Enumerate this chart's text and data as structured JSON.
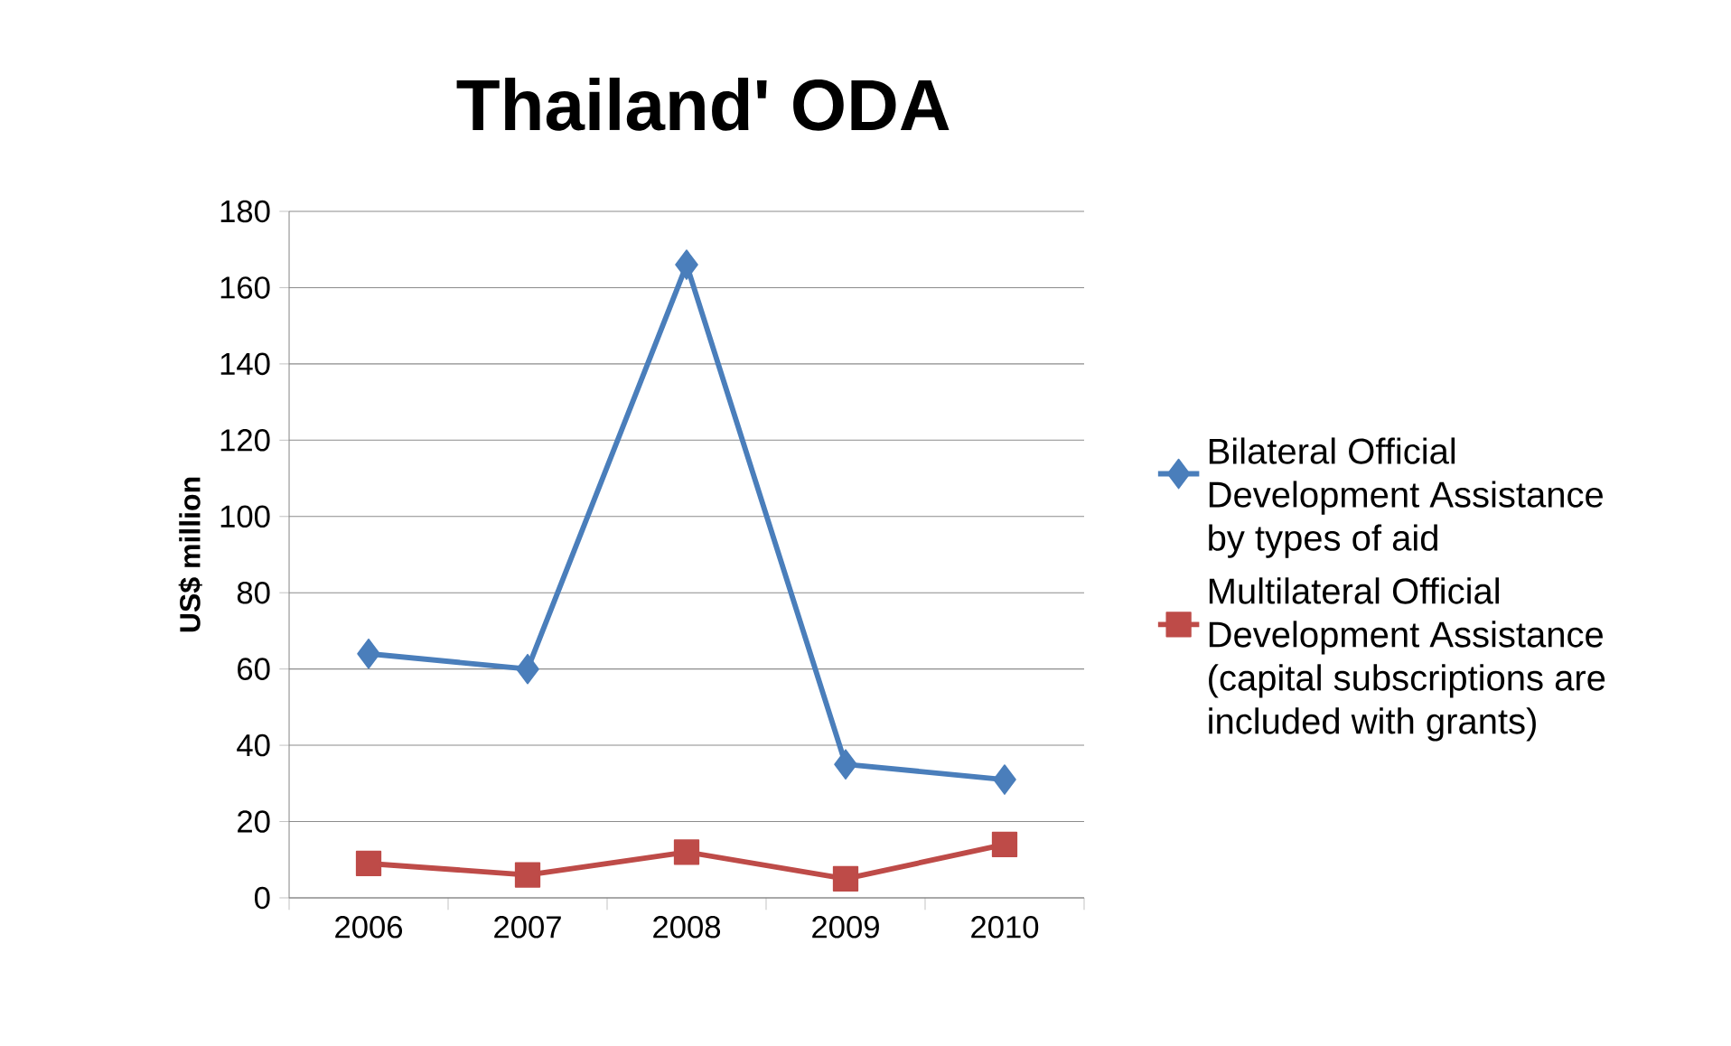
{
  "chart_data": {
    "type": "line",
    "title": "Thailand' ODA",
    "ylabel": "US$ million",
    "categories": [
      "2006",
      "2007",
      "2008",
      "2009",
      "2010"
    ],
    "series": [
      {
        "name": "Bilateral Official Development Assistance by types of aid",
        "color": "#4a7ebb",
        "marker": "diamond",
        "values": [
          64,
          60,
          166,
          35,
          31
        ]
      },
      {
        "name": "Multilateral Official Development Assistance (capital subscriptions are included with grants)",
        "color": "#be4b48",
        "marker": "square",
        "values": [
          9,
          6,
          12,
          5,
          14
        ]
      }
    ],
    "ylim": [
      0,
      180
    ],
    "yticks": [
      0,
      20,
      40,
      60,
      80,
      100,
      120,
      140,
      160,
      180
    ],
    "grid": "y",
    "legend": "right"
  }
}
